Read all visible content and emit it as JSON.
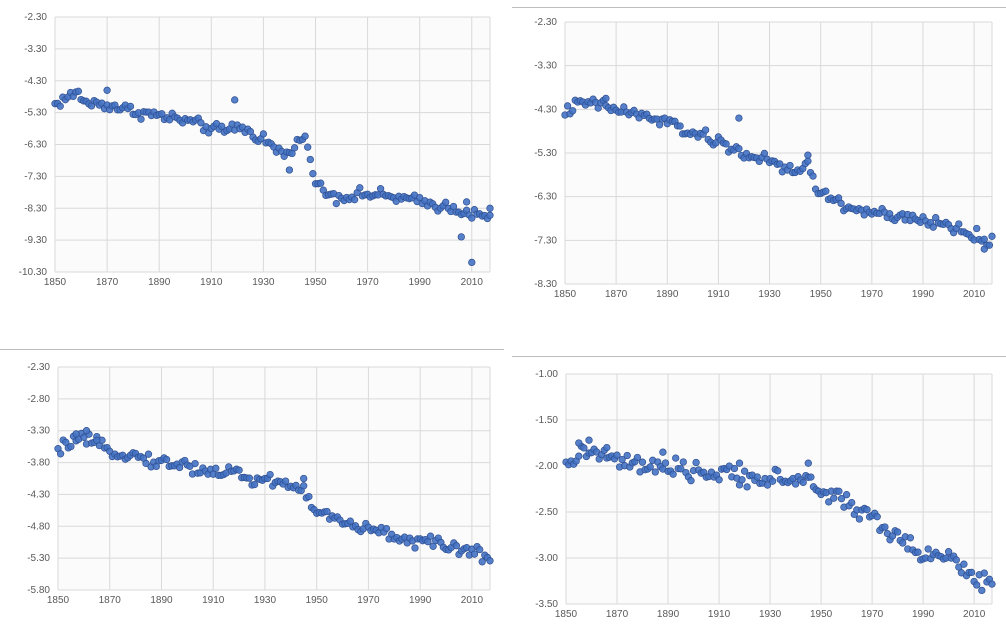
{
  "chart_data": [
    {
      "type": "scatter",
      "xlim": [
        1850,
        2017
      ],
      "ylim": [
        -10.3,
        -2.3
      ],
      "yticks": [
        "-2.30",
        "-3.30",
        "-4.30",
        "-5.30",
        "-6.30",
        "-7.30",
        "-8.30",
        "-9.30",
        "-10.30"
      ],
      "xticks": [
        "1850",
        "1870",
        "1890",
        "1910",
        "1930",
        "1950",
        "1970",
        "1990",
        "2010"
      ],
      "grid": true,
      "marker_color": "#4472C4",
      "anchors": [
        [
          1850,
          -5.05
        ],
        [
          1855,
          -4.8
        ],
        [
          1859,
          -4.7
        ],
        [
          1862,
          -5.0
        ],
        [
          1870,
          -5.05
        ],
        [
          1880,
          -5.25
        ],
        [
          1890,
          -5.4
        ],
        [
          1900,
          -5.55
        ],
        [
          1910,
          -5.8
        ],
        [
          1915,
          -5.9
        ],
        [
          1920,
          -5.7
        ],
        [
          1925,
          -5.95
        ],
        [
          1930,
          -6.1
        ],
        [
          1935,
          -6.5
        ],
        [
          1940,
          -6.6
        ],
        [
          1943,
          -6.3
        ],
        [
          1946,
          -5.8
        ],
        [
          1948,
          -6.9
        ],
        [
          1950,
          -7.5
        ],
        [
          1955,
          -7.85
        ],
        [
          1960,
          -7.95
        ],
        [
          1970,
          -7.85
        ],
        [
          1980,
          -7.95
        ],
        [
          1990,
          -8.1
        ],
        [
          2000,
          -8.25
        ],
        [
          2006,
          -8.35
        ],
        [
          2012,
          -8.55
        ],
        [
          2017,
          -8.6
        ]
      ],
      "noise": 0.09,
      "outliers": [
        [
          1870,
          -4.6
        ],
        [
          1919,
          -4.9
        ],
        [
          1940,
          -7.1
        ],
        [
          2006,
          -9.2
        ],
        [
          2008,
          -8.1
        ],
        [
          2010,
          -10.0
        ],
        [
          2017,
          -8.3
        ]
      ]
    },
    {
      "type": "scatter",
      "xlim": [
        1850,
        2017
      ],
      "ylim": [
        -8.3,
        -2.3
      ],
      "yticks": [
        "-2.30",
        "-3.30",
        "-4.30",
        "-5.30",
        "-6.30",
        "-7.30",
        "-8.30"
      ],
      "xticks": [
        "1850",
        "1870",
        "1890",
        "1910",
        "1930",
        "1950",
        "1970",
        "1990",
        "2010"
      ],
      "grid": true,
      "marker_color": "#4472C4",
      "anchors": [
        [
          1850,
          -4.35
        ],
        [
          1855,
          -4.2
        ],
        [
          1860,
          -4.15
        ],
        [
          1870,
          -4.3
        ],
        [
          1880,
          -4.45
        ],
        [
          1890,
          -4.6
        ],
        [
          1900,
          -4.85
        ],
        [
          1910,
          -5.05
        ],
        [
          1915,
          -5.2
        ],
        [
          1920,
          -5.3
        ],
        [
          1930,
          -5.5
        ],
        [
          1935,
          -5.65
        ],
        [
          1940,
          -5.75
        ],
        [
          1945,
          -5.55
        ],
        [
          1948,
          -6.0
        ],
        [
          1950,
          -6.25
        ],
        [
          1955,
          -6.35
        ],
        [
          1960,
          -6.55
        ],
        [
          1970,
          -6.65
        ],
        [
          1980,
          -6.8
        ],
        [
          1990,
          -6.85
        ],
        [
          2000,
          -6.95
        ],
        [
          2010,
          -7.2
        ],
        [
          2017,
          -7.35
        ]
      ],
      "noise": 0.07,
      "outliers": [
        [
          1866,
          -4.05
        ],
        [
          1918,
          -4.5
        ],
        [
          1945,
          -5.35
        ],
        [
          2014,
          -7.5
        ]
      ]
    },
    {
      "type": "scatter",
      "xlim": [
        1850,
        2017
      ],
      "ylim": [
        -5.8,
        -2.3
      ],
      "yticks": [
        "-2.30",
        "-2.80",
        "-3.30",
        "-3.80",
        "-4.30",
        "-4.80",
        "-5.30",
        "-5.80"
      ],
      "xticks": [
        "1850",
        "1870",
        "1890",
        "1910",
        "1930",
        "1950",
        "1970",
        "1990",
        "2010"
      ],
      "grid": true,
      "marker_color": "#4472C4",
      "anchors": [
        [
          1850,
          -3.65
        ],
        [
          1855,
          -3.45
        ],
        [
          1860,
          -3.45
        ],
        [
          1870,
          -3.6
        ],
        [
          1880,
          -3.7
        ],
        [
          1890,
          -3.8
        ],
        [
          1900,
          -3.85
        ],
        [
          1910,
          -3.95
        ],
        [
          1920,
          -3.95
        ],
        [
          1925,
          -4.1
        ],
        [
          1930,
          -4.05
        ],
        [
          1940,
          -4.15
        ],
        [
          1945,
          -4.25
        ],
        [
          1948,
          -4.45
        ],
        [
          1950,
          -4.55
        ],
        [
          1960,
          -4.75
        ],
        [
          1970,
          -4.85
        ],
        [
          1980,
          -4.95
        ],
        [
          1990,
          -5.05
        ],
        [
          2000,
          -5.1
        ],
        [
          2010,
          -5.2
        ],
        [
          2017,
          -5.3
        ]
      ],
      "noise": 0.05,
      "outliers": [
        [
          1857,
          -3.35
        ],
        [
          1861,
          -3.3
        ],
        [
          1865,
          -3.45
        ],
        [
          1945,
          -4.05
        ]
      ]
    },
    {
      "type": "scatter",
      "xlim": [
        1850,
        2017
      ],
      "ylim": [
        -3.5,
        -1.0
      ],
      "yticks": [
        "-1.00",
        "-1.50",
        "-2.00",
        "-2.50",
        "-3.00",
        "-3.50"
      ],
      "xticks": [
        "1850",
        "1870",
        "1890",
        "1910",
        "1930",
        "1950",
        "1970",
        "1990",
        "2010"
      ],
      "grid": true,
      "marker_color": "#4472C4",
      "anchors": [
        [
          1850,
          -2.05
        ],
        [
          1855,
          -1.85
        ],
        [
          1860,
          -1.85
        ],
        [
          1870,
          -1.95
        ],
        [
          1880,
          -2.0
        ],
        [
          1890,
          -2.05
        ],
        [
          1900,
          -2.05
        ],
        [
          1910,
          -2.1
        ],
        [
          1920,
          -2.1
        ],
        [
          1930,
          -2.15
        ],
        [
          1940,
          -2.15
        ],
        [
          1945,
          -2.15
        ],
        [
          1950,
          -2.3
        ],
        [
          1955,
          -2.3
        ],
        [
          1960,
          -2.4
        ],
        [
          1970,
          -2.55
        ],
        [
          1980,
          -2.8
        ],
        [
          1990,
          -2.95
        ],
        [
          2000,
          -3.0
        ],
        [
          2010,
          -3.2
        ],
        [
          2017,
          -3.3
        ]
      ],
      "noise": 0.05,
      "outliers": [
        [
          1855,
          -1.75
        ],
        [
          1859,
          -1.72
        ],
        [
          1866,
          -1.8
        ],
        [
          1888,
          -1.85
        ],
        [
          1918,
          -1.97
        ],
        [
          1945,
          -1.97
        ]
      ]
    }
  ]
}
